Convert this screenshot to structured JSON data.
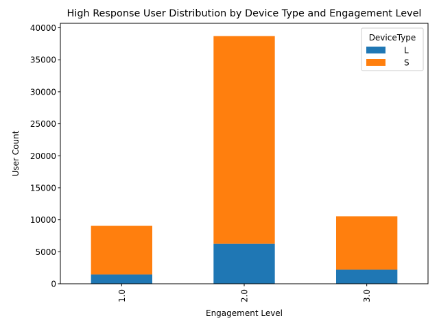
{
  "chart_data": {
    "type": "bar",
    "stacked": true,
    "title": "High Response User Distribution by Device Type and Engagement Level",
    "xlabel": "Engagement Level",
    "ylabel": "User Count",
    "categories": [
      "1.0",
      "2.0",
      "3.0"
    ],
    "series": [
      {
        "name": "L",
        "values": [
          1450,
          6250,
          2200
        ],
        "color": "#1f77b4"
      },
      {
        "name": "S",
        "values": [
          7600,
          32450,
          8350
        ],
        "color": "#ff7f0e"
      }
    ],
    "ylim": [
      0,
      40700
    ],
    "yticks": [
      0,
      5000,
      10000,
      15000,
      20000,
      25000,
      30000,
      35000,
      40000
    ],
    "grid": false,
    "legend": {
      "title": "DeviceType",
      "position": "top-right"
    }
  }
}
